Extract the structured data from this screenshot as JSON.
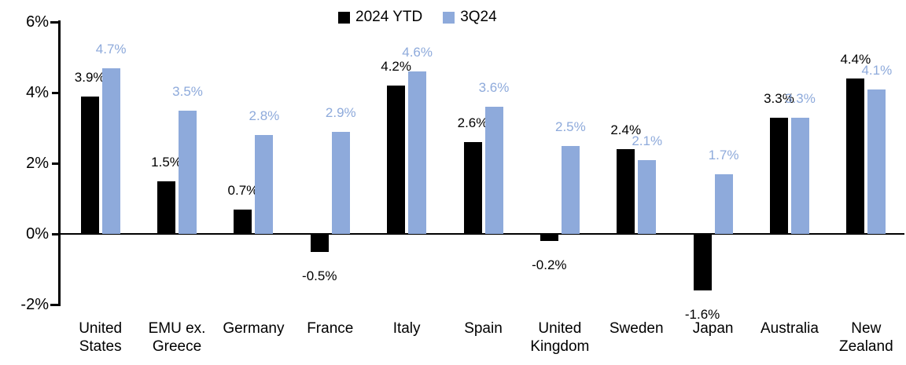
{
  "chart_data": {
    "type": "bar",
    "title": "",
    "legend": {
      "position": "top",
      "entries": [
        "2024 YTD",
        "3Q24"
      ]
    },
    "categories": [
      "United\nStates",
      "EMU ex.\nGreece",
      "Germany",
      "France",
      "Italy",
      "Spain",
      "United\nKingdom",
      "Sweden",
      "Japan",
      "Australia",
      "New\nZealand"
    ],
    "series": [
      {
        "name": "2024 YTD",
        "color": "#000000",
        "label_color": "#000000",
        "values": [
          3.9,
          1.5,
          0.7,
          -0.5,
          4.2,
          2.6,
          -0.2,
          2.4,
          -1.6,
          3.3,
          4.4
        ]
      },
      {
        "name": "3Q24",
        "color": "#8EAADB",
        "label_color": "#8EAADB",
        "values": [
          4.7,
          3.5,
          2.8,
          2.9,
          4.6,
          3.6,
          2.5,
          2.1,
          1.7,
          3.3,
          4.1
        ]
      }
    ],
    "y_axis": {
      "min": -2,
      "max": 6,
      "unit": "%",
      "ticks": [
        {
          "label": "6%",
          "value": 6
        },
        {
          "label": "4%",
          "value": 4
        },
        {
          "label": "2%",
          "value": 2
        },
        {
          "label": "0%",
          "value": 0
        },
        {
          "label": "-2%",
          "value": -2
        }
      ]
    },
    "value_label_format": "one_decimal_percent",
    "grid": false,
    "background": "#ffffff"
  }
}
